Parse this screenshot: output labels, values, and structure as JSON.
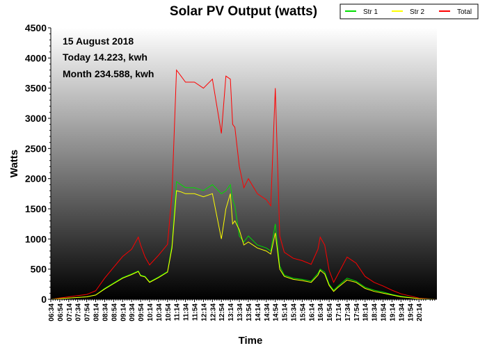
{
  "chart_data": {
    "type": "line",
    "title": "Solar PV Output (watts)",
    "xlabel": "Time",
    "ylabel": "Watts",
    "ylim": [
      0,
      4500
    ],
    "y_ticks": [
      0,
      500,
      1000,
      1500,
      2000,
      2500,
      3000,
      3500,
      4000,
      4500
    ],
    "x_range": [
      "06:34",
      "20:54"
    ],
    "x_ticks": [
      "06:34",
      "06:54",
      "07:14",
      "07:34",
      "07:54",
      "08:14",
      "08:34",
      "08:54",
      "09:14",
      "09:34",
      "09:54",
      "10:14",
      "10:34",
      "10:54",
      "11:14",
      "11:34",
      "11:54",
      "12:14",
      "12:34",
      "12:54",
      "13:14",
      "13:34",
      "13:54",
      "14:14",
      "14:34",
      "14:54",
      "15:14",
      "15:34",
      "15:54",
      "16:14",
      "16:34",
      "16:54",
      "17:14",
      "17:34",
      "17:54",
      "18:14",
      "18:34",
      "18:54",
      "19:14",
      "19:34",
      "19:54",
      "20:14"
    ],
    "annotations": [
      "15 August 2018",
      "Today 14.223, kwh",
      "Month 234.588, kwh"
    ],
    "legend_position": "top-right",
    "grid": false,
    "series": [
      {
        "name": "Str 1",
        "color": "#00dd00",
        "x": [
          "06:34",
          "06:54",
          "07:14",
          "07:34",
          "07:54",
          "08:14",
          "08:34",
          "08:54",
          "09:14",
          "09:34",
          "09:49",
          "09:54",
          "10:04",
          "10:14",
          "10:34",
          "10:54",
          "11:04",
          "11:14",
          "11:24",
          "11:34",
          "11:54",
          "12:14",
          "12:34",
          "12:54",
          "13:04",
          "13:14",
          "13:19",
          "13:24",
          "13:34",
          "13:44",
          "13:54",
          "14:14",
          "14:34",
          "14:44",
          "14:54",
          "15:04",
          "15:14",
          "15:34",
          "15:54",
          "16:14",
          "16:29",
          "16:34",
          "16:44",
          "16:54",
          "17:04",
          "17:14",
          "17:34",
          "17:54",
          "18:14",
          "18:34",
          "18:54",
          "19:14",
          "19:34",
          "19:54",
          "20:14",
          "20:34",
          "20:54"
        ],
        "values": [
          0,
          10,
          20,
          30,
          40,
          70,
          180,
          270,
          360,
          420,
          470,
          400,
          380,
          290,
          370,
          460,
          900,
          1950,
          1900,
          1850,
          1850,
          1800,
          1900,
          1750,
          1800,
          1900,
          1650,
          1550,
          1050,
          950,
          1050,
          900,
          850,
          800,
          1250,
          550,
          400,
          350,
          330,
          300,
          430,
          500,
          450,
          250,
          150,
          220,
          350,
          300,
          200,
          150,
          120,
          80,
          50,
          30,
          10,
          5,
          0
        ]
      },
      {
        "name": "Str 2",
        "color": "#ffff00",
        "x": [
          "06:34",
          "06:54",
          "07:14",
          "07:34",
          "07:54",
          "08:14",
          "08:34",
          "08:54",
          "09:14",
          "09:34",
          "09:49",
          "09:54",
          "10:04",
          "10:14",
          "10:34",
          "10:54",
          "11:04",
          "11:14",
          "11:24",
          "11:34",
          "11:54",
          "12:14",
          "12:34",
          "12:54",
          "13:04",
          "13:14",
          "13:19",
          "13:24",
          "13:34",
          "13:44",
          "13:54",
          "14:14",
          "14:34",
          "14:44",
          "14:54",
          "15:04",
          "15:14",
          "15:34",
          "15:54",
          "16:14",
          "16:29",
          "16:34",
          "16:44",
          "16:54",
          "17:04",
          "17:14",
          "17:34",
          "17:54",
          "18:14",
          "18:34",
          "18:54",
          "19:14",
          "19:34",
          "19:54",
          "20:14",
          "20:34",
          "20:54"
        ],
        "values": [
          0,
          10,
          20,
          30,
          40,
          70,
          170,
          260,
          350,
          410,
          460,
          390,
          370,
          280,
          360,
          450,
          850,
          1800,
          1780,
          1750,
          1750,
          1700,
          1750,
          1000,
          1500,
          1750,
          1250,
          1300,
          1150,
          900,
          950,
          850,
          800,
          750,
          1100,
          500,
          380,
          330,
          310,
          280,
          400,
          480,
          420,
          230,
          130,
          200,
          320,
          280,
          180,
          130,
          100,
          70,
          40,
          25,
          8,
          3,
          0
        ]
      },
      {
        "name": "Total",
        "color": "#ff0000",
        "x": [
          "06:34",
          "06:54",
          "07:14",
          "07:34",
          "07:54",
          "08:14",
          "08:34",
          "08:54",
          "09:14",
          "09:34",
          "09:49",
          "09:54",
          "10:04",
          "10:14",
          "10:34",
          "10:54",
          "11:04",
          "11:14",
          "11:24",
          "11:34",
          "11:54",
          "12:14",
          "12:34",
          "12:54",
          "13:04",
          "13:14",
          "13:19",
          "13:24",
          "13:34",
          "13:44",
          "13:54",
          "14:14",
          "14:34",
          "14:44",
          "14:54",
          "15:04",
          "15:14",
          "15:34",
          "15:54",
          "16:14",
          "16:29",
          "16:34",
          "16:44",
          "16:54",
          "17:04",
          "17:14",
          "17:34",
          "17:54",
          "18:14",
          "18:34",
          "18:54",
          "19:14",
          "19:34",
          "19:54",
          "20:14",
          "20:34",
          "20:54"
        ],
        "values": [
          0,
          20,
          40,
          60,
          80,
          140,
          350,
          530,
          710,
          830,
          1030,
          900,
          700,
          570,
          730,
          910,
          1750,
          3800,
          3700,
          3600,
          3600,
          3500,
          3650,
          2750,
          3700,
          3650,
          2900,
          2850,
          2200,
          1850,
          2000,
          1750,
          1650,
          1550,
          3500,
          1050,
          780,
          680,
          640,
          580,
          830,
          1030,
          900,
          480,
          280,
          420,
          700,
          600,
          380,
          280,
          220,
          150,
          90,
          55,
          18,
          8,
          0
        ]
      }
    ]
  }
}
